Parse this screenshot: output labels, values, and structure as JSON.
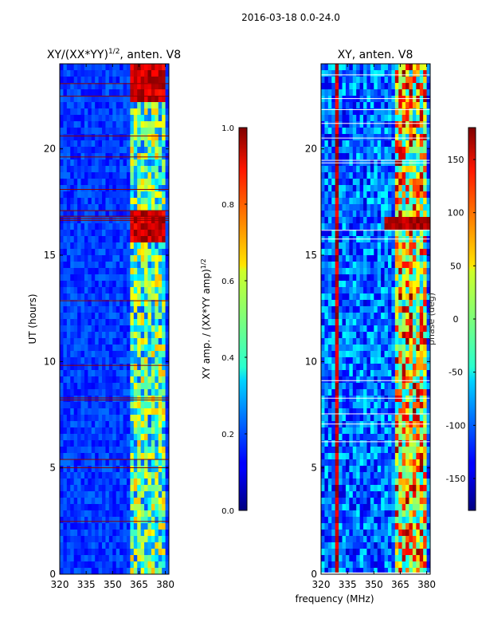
{
  "figure": {
    "suptitle": "2016-03-18 0.0-24.0"
  },
  "chart_data": [
    {
      "type": "heatmap",
      "title": "XY/(XX*YY)^1/2, anten. V8",
      "title_main": "XY/(XX*YY)",
      "title_sup": "1/2",
      "title_tail": ", anten. V8",
      "xlabel": "",
      "ylabel": "UT (hours)",
      "xlim": [
        320,
        382
      ],
      "ylim": [
        0,
        24
      ],
      "xticks": [
        320,
        335,
        350,
        365,
        380
      ],
      "yticks": [
        0,
        5,
        10,
        15,
        20
      ],
      "colormap": "jet",
      "colorbar": {
        "label": "XY amp. / (XX*YY amp)^1/2",
        "label_main": "XY amp. / (XX*YY amp)",
        "label_sup": "1/2",
        "range": [
          0.0,
          1.0
        ],
        "ticks": [
          "0.0",
          "0.2",
          "0.4",
          "0.6",
          "0.8",
          "1.0"
        ]
      }
    },
    {
      "type": "heatmap",
      "title": "XY, anten. V8",
      "xlabel": "frequency (MHz)",
      "ylabel": "",
      "xlim": [
        320,
        382
      ],
      "ylim": [
        0,
        24
      ],
      "xticks": [
        320,
        335,
        350,
        365,
        380
      ],
      "yticks": [
        0,
        5,
        10,
        15,
        20
      ],
      "colormap": "jet",
      "colorbar": {
        "label": "phase (deg)",
        "range": [
          -180,
          180
        ],
        "ticks": [
          "-150",
          "-100",
          "-50",
          "0",
          "50",
          "100",
          "150"
        ]
      }
    }
  ]
}
